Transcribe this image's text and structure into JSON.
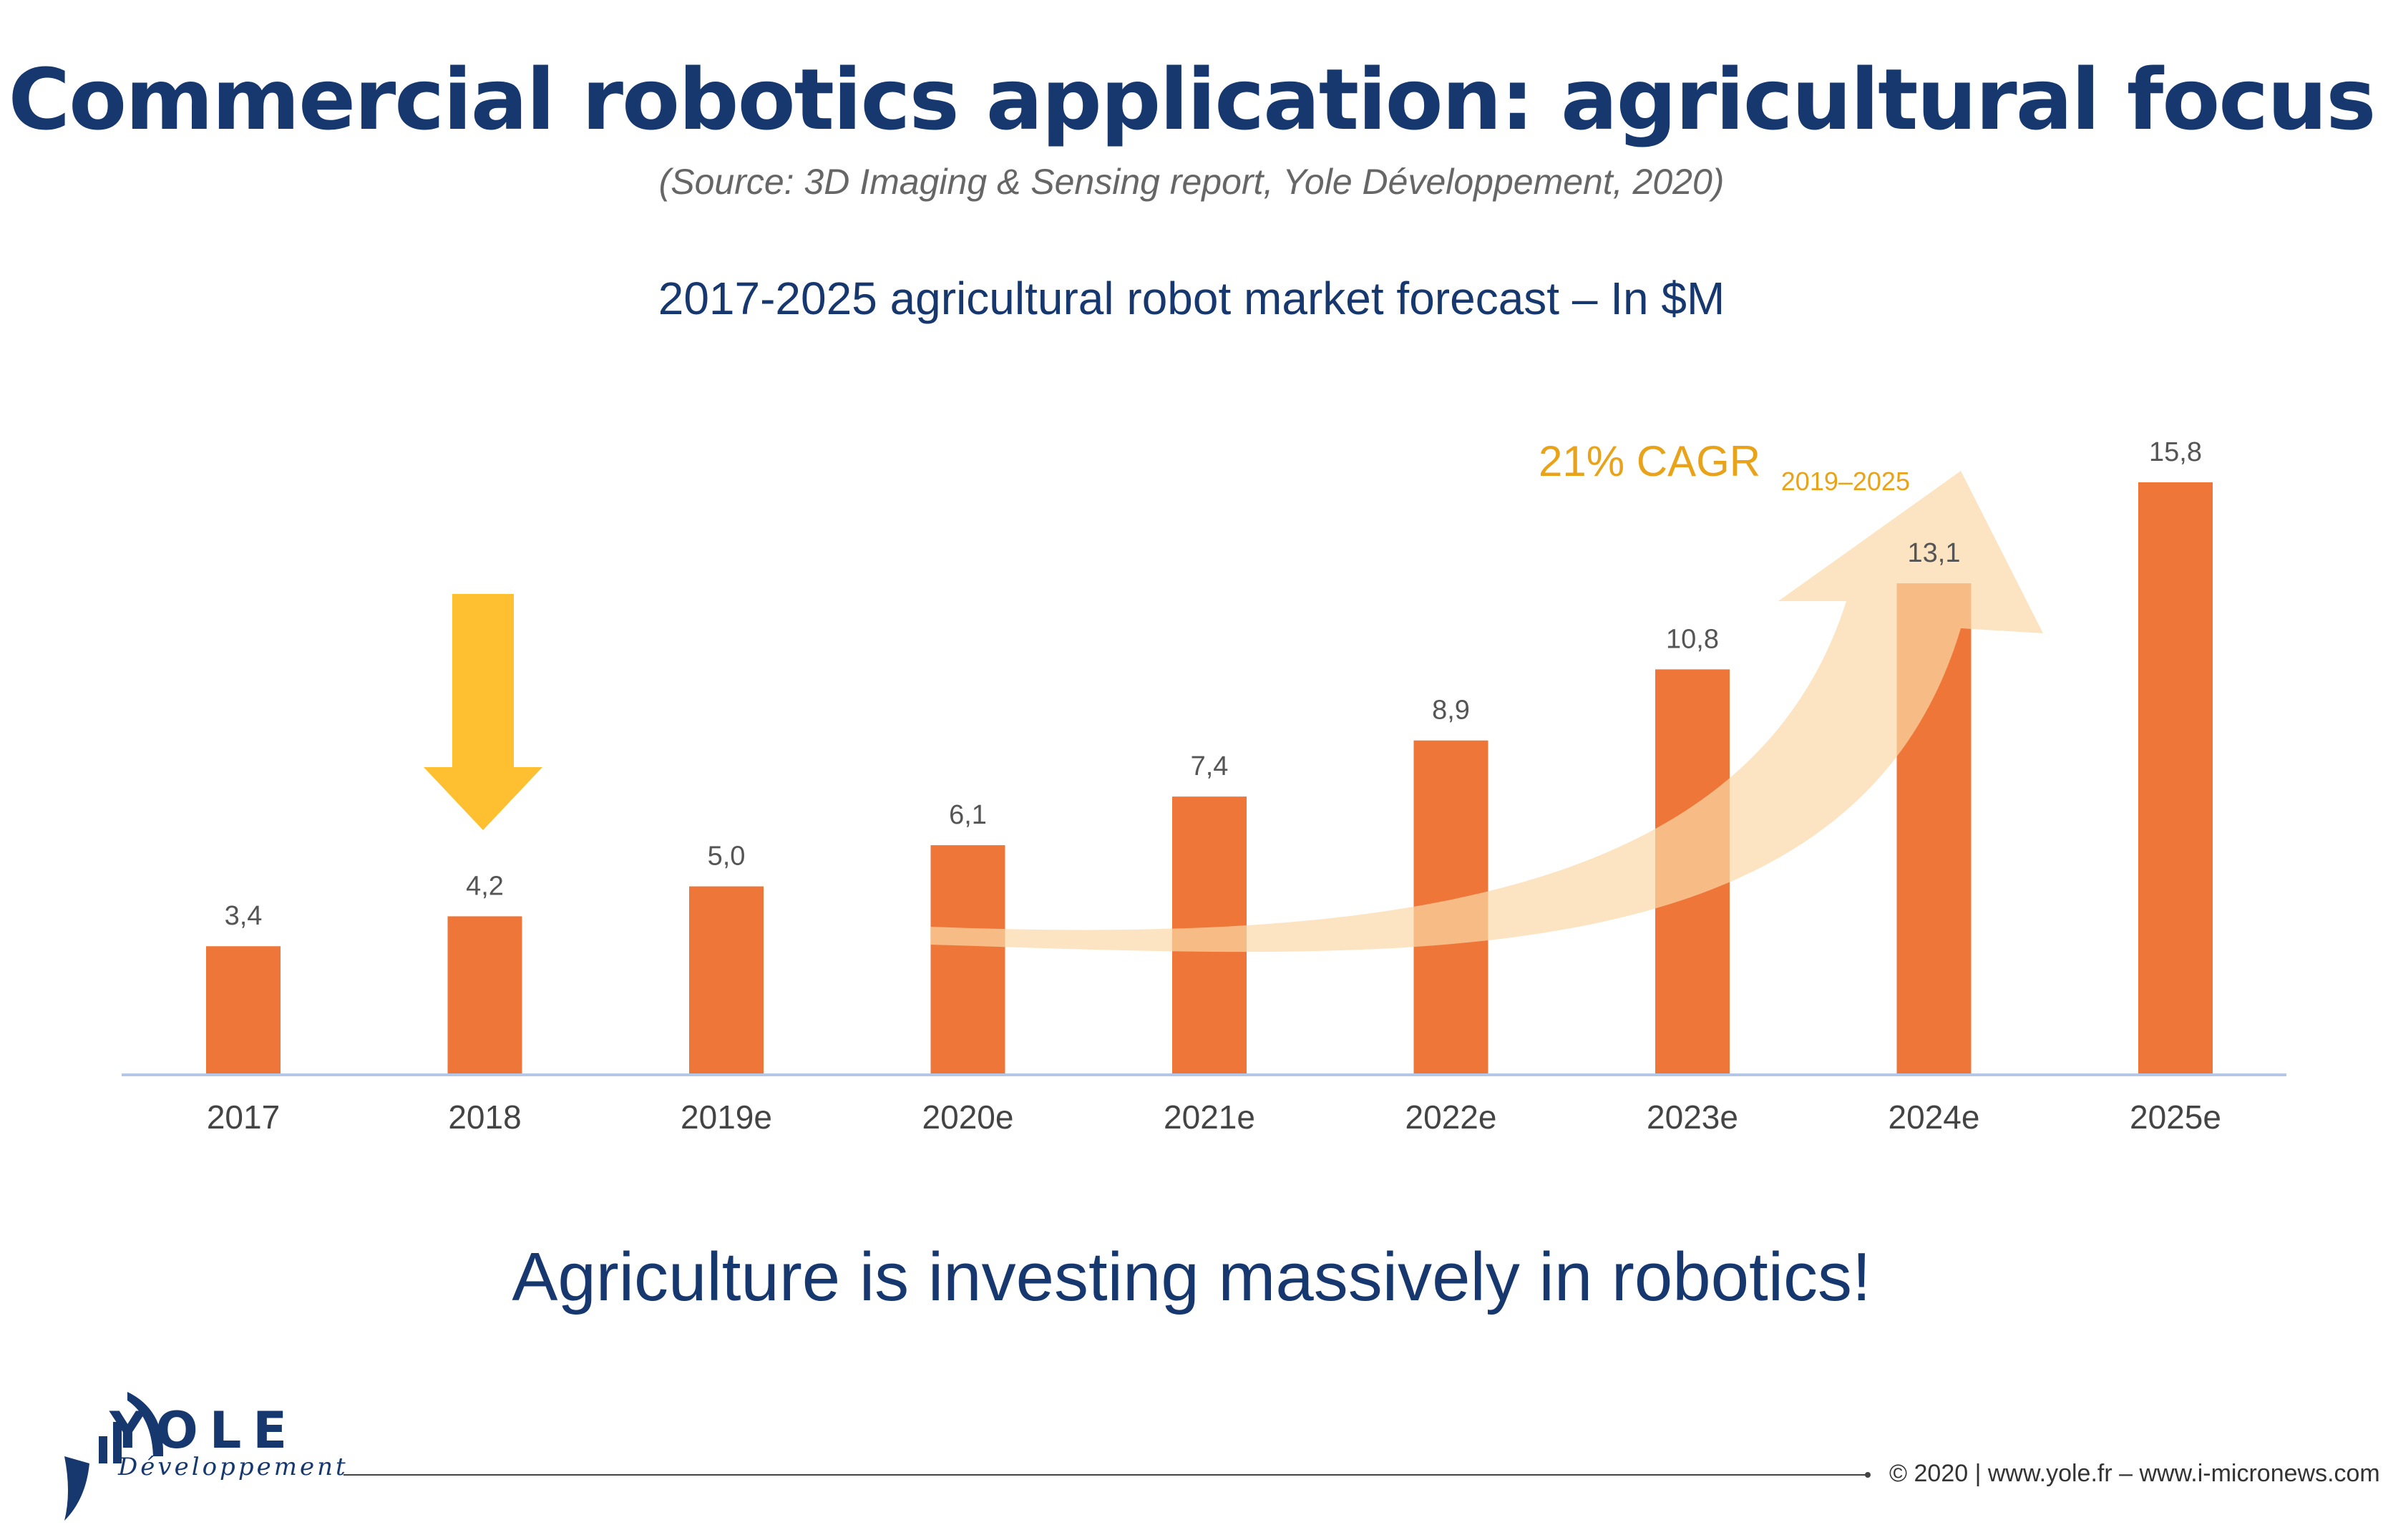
{
  "header": {
    "title": "Commercial robotics application: agricultural focus",
    "source": "(Source: 3D Imaging & Sensing report, Yole Développement, 2020)"
  },
  "chart_data": {
    "type": "bar",
    "title": "2017-2025 agricultural robot market forecast – In $M",
    "categories": [
      "2017",
      "2018",
      "2019e",
      "2020e",
      "2021e",
      "2022e",
      "2023e",
      "2024e",
      "2025e"
    ],
    "values": [
      3.4,
      4.2,
      5.0,
      6.1,
      7.4,
      8.9,
      10.8,
      13.1,
      15.8
    ],
    "value_labels": [
      "3,4",
      "4,2",
      "5,0",
      "6,1",
      "7,4",
      "8,9",
      "10,8",
      "13,1",
      "15,8"
    ],
    "ylim": [
      0,
      16
    ],
    "grid": false,
    "legend": "none",
    "annotations": {
      "cagr_label": "21% CAGR",
      "cagr_period": "2019–2025",
      "highlight_category": "2018"
    },
    "colors": {
      "bar": "#ed7638",
      "axis": "#b4c7e7",
      "value_label": "#555555",
      "tick_label": "#444444",
      "cagr": "#e8a31a",
      "highlight_arrow": "#fec030",
      "trend_arrow": "#fbd9a8"
    }
  },
  "tagline": "Agriculture is investing massively in robotics!",
  "logo": {
    "name": "YOLE",
    "subtitle": "Développement"
  },
  "footer": {
    "text": "© 2020 | www.yole.fr – www.i-micronews.com"
  }
}
